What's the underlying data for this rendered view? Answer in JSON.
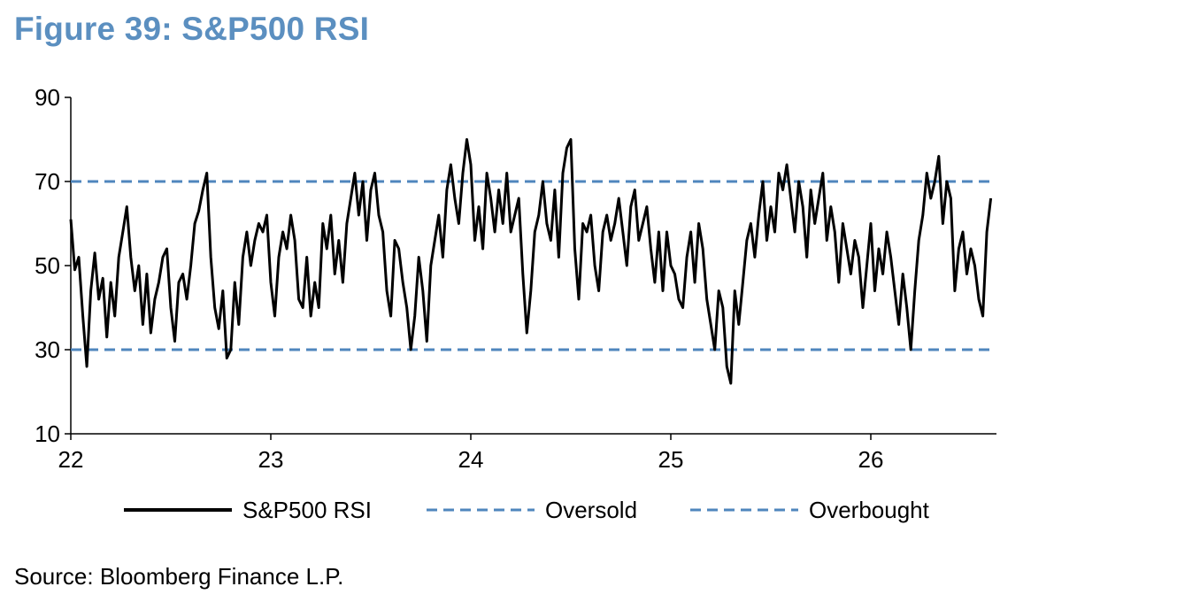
{
  "title": "Figure 39: S&P500 RSI",
  "source": "Source: Bloomberg Finance L.P.",
  "chart_data": {
    "type": "line",
    "xlim": [
      22,
      26.6
    ],
    "ylim": [
      10,
      90
    ],
    "x_ticks": [
      "22",
      "23",
      "24",
      "25",
      "26"
    ],
    "y_ticks": [
      "10",
      "30",
      "50",
      "70",
      "90"
    ],
    "grid": false,
    "legend_position": "bottom",
    "series": [
      {
        "name": "S&P500 RSI",
        "color": "#000000",
        "style": "solid",
        "x": [
          22.0,
          22.02,
          22.04,
          22.06,
          22.08,
          22.1,
          22.12,
          22.14,
          22.16,
          22.18,
          22.2,
          22.22,
          22.24,
          22.26,
          22.28,
          22.3,
          22.32,
          22.34,
          22.36,
          22.38,
          22.4,
          22.42,
          22.44,
          22.46,
          22.48,
          22.5,
          22.52,
          22.54,
          22.56,
          22.58,
          22.6,
          22.62,
          22.64,
          22.66,
          22.68,
          22.7,
          22.72,
          22.74,
          22.76,
          22.78,
          22.8,
          22.82,
          22.84,
          22.86,
          22.88,
          22.9,
          22.92,
          22.94,
          22.96,
          22.98,
          23.0,
          23.02,
          23.04,
          23.06,
          23.08,
          23.1,
          23.12,
          23.14,
          23.16,
          23.18,
          23.2,
          23.22,
          23.24,
          23.26,
          23.28,
          23.3,
          23.32,
          23.34,
          23.36,
          23.38,
          23.4,
          23.42,
          23.44,
          23.46,
          23.48,
          23.5,
          23.52,
          23.54,
          23.56,
          23.58,
          23.6,
          23.62,
          23.64,
          23.66,
          23.68,
          23.7,
          23.72,
          23.74,
          23.76,
          23.78,
          23.8,
          23.82,
          23.84,
          23.86,
          23.88,
          23.9,
          23.92,
          23.94,
          23.96,
          23.98,
          24.0,
          24.02,
          24.04,
          24.06,
          24.08,
          24.1,
          24.12,
          24.14,
          24.16,
          24.18,
          24.2,
          24.22,
          24.24,
          24.26,
          24.28,
          24.3,
          24.32,
          24.34,
          24.36,
          24.38,
          24.4,
          24.42,
          24.44,
          24.46,
          24.48,
          24.5,
          24.52,
          24.54,
          24.56,
          24.58,
          24.6,
          24.62,
          24.64,
          24.66,
          24.68,
          24.7,
          24.72,
          24.74,
          24.76,
          24.78,
          24.8,
          24.82,
          24.84,
          24.86,
          24.88,
          24.9,
          24.92,
          24.94,
          24.96,
          24.98,
          25.0,
          25.02,
          25.04,
          25.06,
          25.08,
          25.1,
          25.12,
          25.14,
          25.16,
          25.18,
          25.2,
          25.22,
          25.24,
          25.26,
          25.28,
          25.3,
          25.32,
          25.34,
          25.36,
          25.38,
          25.4,
          25.42,
          25.44,
          25.46,
          25.48,
          25.5,
          25.52,
          25.54,
          25.56,
          25.58,
          25.6,
          25.62,
          25.64,
          25.66,
          25.68,
          25.7,
          25.72,
          25.74,
          25.76,
          25.78,
          25.8,
          25.82,
          25.84,
          25.86,
          25.88,
          25.9,
          25.92,
          25.94,
          25.96,
          25.98,
          26.0,
          26.02,
          26.04,
          26.06,
          26.08,
          26.1,
          26.12,
          26.14,
          26.16,
          26.18,
          26.2,
          26.22,
          26.24,
          26.26,
          26.28,
          26.3,
          26.32,
          26.34,
          26.36,
          26.38,
          26.4,
          26.42,
          26.44,
          26.46,
          26.48,
          26.5,
          26.52,
          26.54,
          26.56,
          26.58,
          26.6
        ],
        "values": [
          61,
          49,
          52,
          38,
          26,
          44,
          53,
          42,
          47,
          33,
          46,
          38,
          52,
          58,
          64,
          52,
          44,
          50,
          36,
          48,
          34,
          42,
          46,
          52,
          54,
          40,
          32,
          46,
          48,
          42,
          50,
          60,
          63,
          68,
          72,
          52,
          40,
          35,
          44,
          28,
          30,
          46,
          36,
          52,
          58,
          50,
          56,
          60,
          58,
          62,
          46,
          38,
          52,
          58,
          54,
          62,
          56,
          42,
          40,
          52,
          38,
          46,
          40,
          60,
          54,
          62,
          48,
          56,
          46,
          60,
          66,
          72,
          62,
          70,
          56,
          68,
          72,
          62,
          58,
          44,
          38,
          56,
          54,
          46,
          40,
          30,
          38,
          52,
          44,
          32,
          50,
          56,
          62,
          52,
          68,
          74,
          66,
          60,
          72,
          80,
          74,
          56,
          64,
          54,
          72,
          66,
          58,
          68,
          60,
          72,
          58,
          62,
          66,
          48,
          34,
          44,
          58,
          62,
          70,
          60,
          56,
          68,
          52,
          72,
          78,
          80,
          54,
          42,
          60,
          58,
          62,
          50,
          44,
          58,
          62,
          56,
          60,
          66,
          58,
          50,
          64,
          68,
          56,
          60,
          64,
          54,
          46,
          58,
          44,
          58,
          50,
          48,
          42,
          40,
          52,
          58,
          46,
          60,
          54,
          42,
          36,
          30,
          44,
          40,
          26,
          22,
          44,
          36,
          46,
          56,
          60,
          52,
          62,
          70,
          56,
          64,
          58,
          72,
          68,
          74,
          66,
          58,
          70,
          64,
          52,
          68,
          60,
          66,
          72,
          56,
          64,
          58,
          46,
          60,
          54,
          48,
          56,
          52,
          40,
          50,
          60,
          44,
          54,
          48,
          58,
          52,
          44,
          36,
          48,
          40,
          30,
          44,
          56,
          62,
          72,
          66,
          70,
          76,
          60,
          70,
          66,
          44,
          54,
          58,
          48,
          54,
          50,
          42,
          38,
          58,
          66
        ]
      },
      {
        "name": "Oversold",
        "color": "#4f86bd",
        "style": "dashed",
        "x": [
          22.0,
          26.6
        ],
        "values": [
          30,
          30
        ]
      },
      {
        "name": "Overbought",
        "color": "#4f86bd",
        "style": "dashed",
        "x": [
          22.0,
          26.6
        ],
        "values": [
          70,
          70
        ]
      }
    ]
  }
}
